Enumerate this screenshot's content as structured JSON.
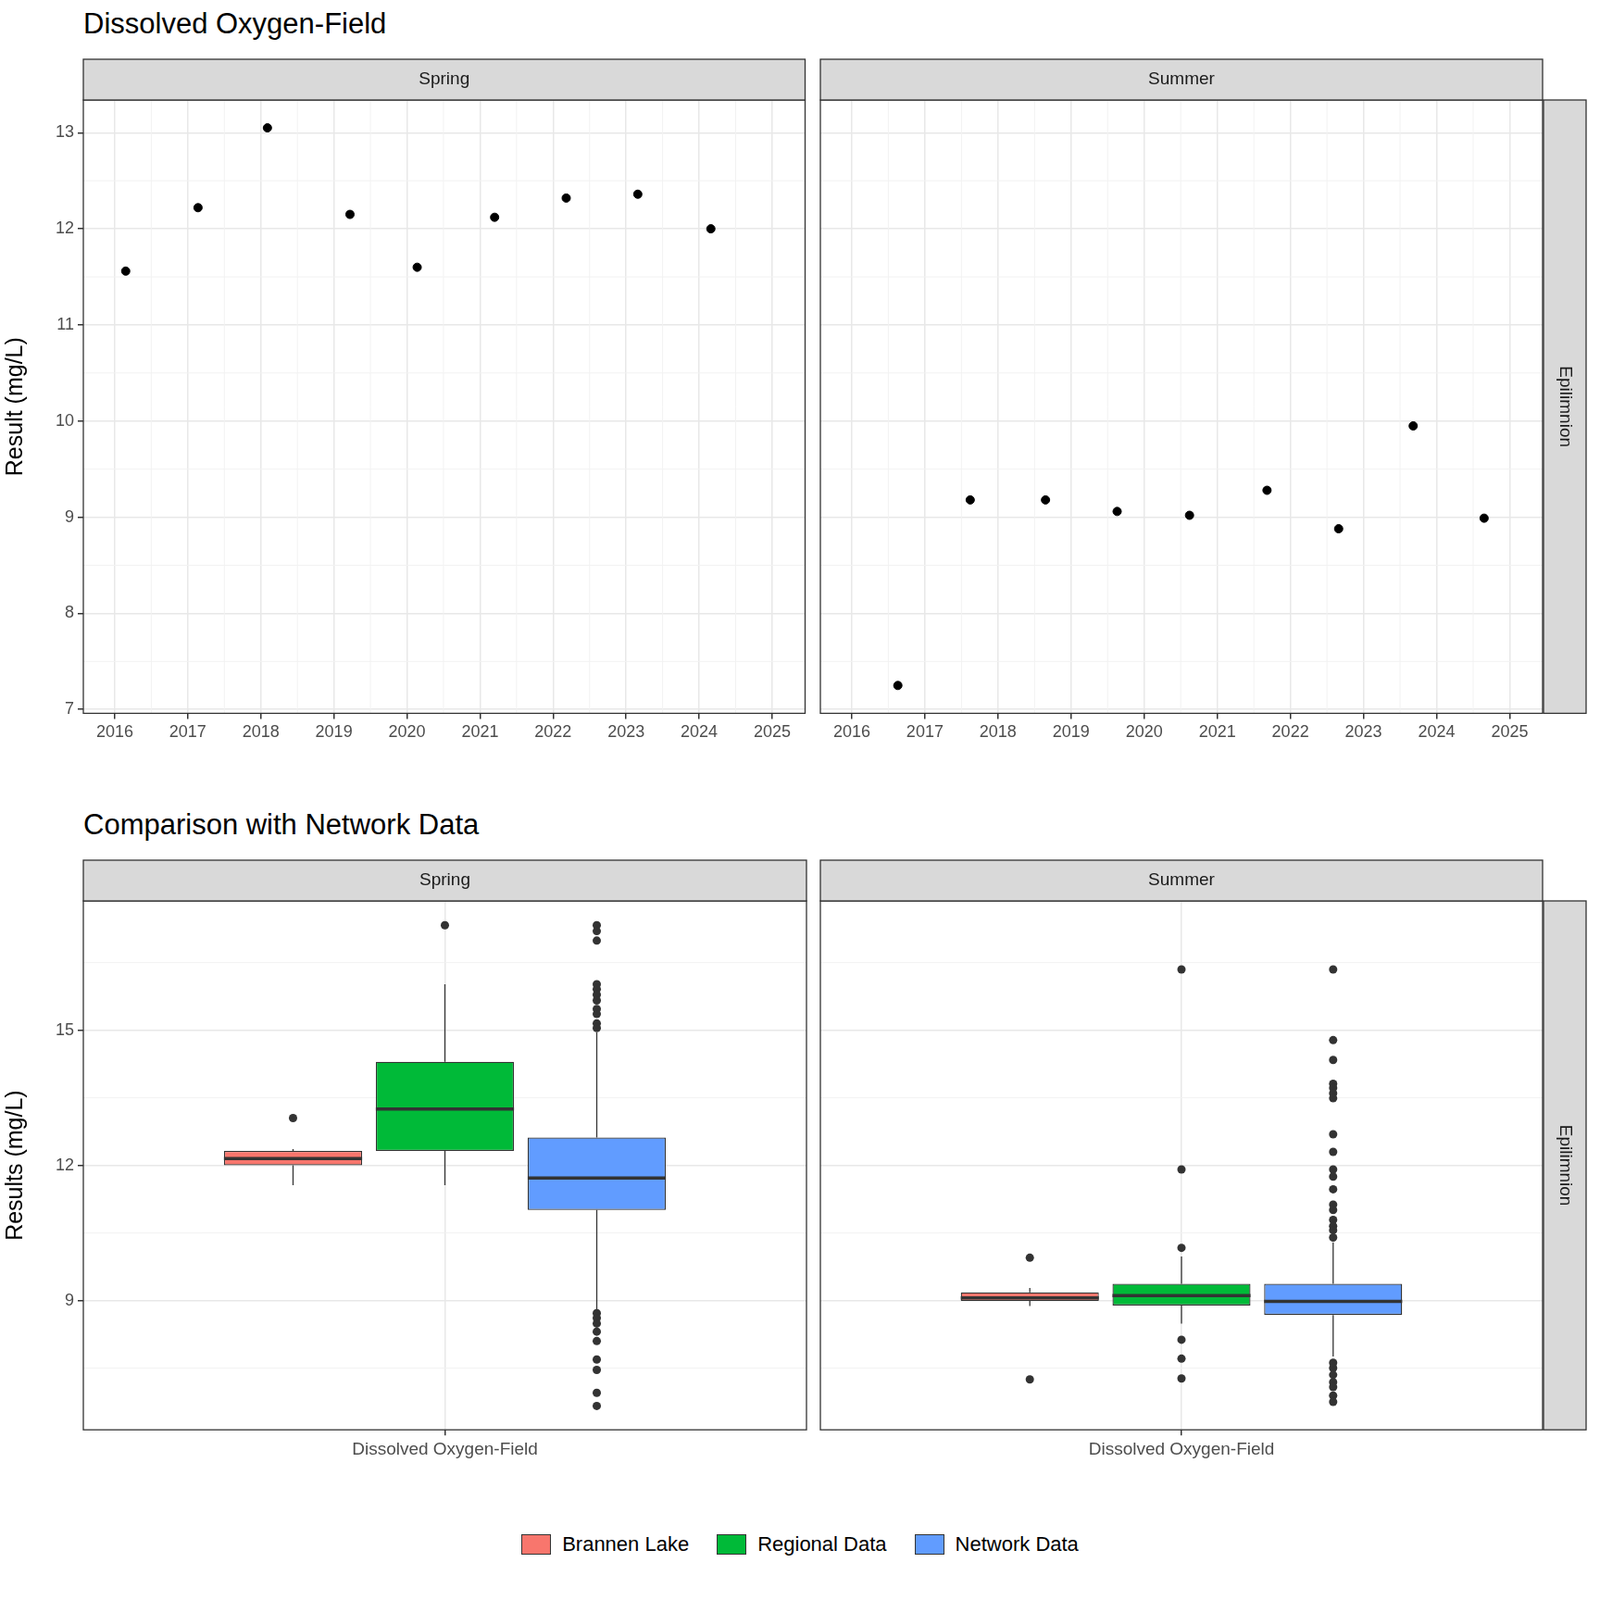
{
  "chart_data": [
    {
      "type": "scatter",
      "title": "Dissolved Oxygen-Field",
      "panel": "Spring",
      "y_label": "Result (mg/L)",
      "x": [
        2016.15,
        2017.14,
        2018.09,
        2019.22,
        2020.14,
        2021.2,
        2022.18,
        2023.16,
        2024.16
      ],
      "values": [
        11.56,
        12.22,
        13.05,
        12.15,
        11.6,
        12.12,
        12.32,
        12.36,
        12.0
      ],
      "color": "#000000",
      "marker": "circle",
      "xlim": [
        2015.57,
        2025.45
      ],
      "xticks": [
        2016,
        2017,
        2018,
        2019,
        2020,
        2021,
        2022,
        2023,
        2024,
        2025
      ],
      "ylim": [
        6.96,
        13.34
      ],
      "yticks": [
        7,
        8,
        9,
        10,
        11,
        12,
        13
      ],
      "grid": true,
      "tick_labels": true
    },
    {
      "type": "scatter",
      "panel": "Summer",
      "row_label": "Epilimnion",
      "x": [
        2016.63,
        2017.62,
        2018.65,
        2019.63,
        2020.62,
        2021.68,
        2022.66,
        2023.68,
        2024.65
      ],
      "values": [
        7.25,
        9.18,
        9.18,
        9.06,
        9.02,
        9.28,
        8.88,
        9.95,
        8.99
      ],
      "color": "#000000",
      "marker": "circle",
      "xlim": [
        2015.57,
        2025.45
      ],
      "xticks": [
        2016,
        2017,
        2018,
        2019,
        2020,
        2021,
        2022,
        2023,
        2024,
        2025
      ],
      "ylim": [
        6.96,
        13.34
      ],
      "yticks": [
        7,
        8,
        9,
        10,
        11,
        12,
        13
      ],
      "grid": true,
      "tick_labels": "x"
    },
    {
      "type": "boxplot",
      "title": "Comparison with Network Data",
      "panel": "Spring",
      "y_label": "Results (mg/L)",
      "categories": [
        "Dissolved Oxygen-Field"
      ],
      "series": [
        {
          "name": "Brannen Lake",
          "color": "#F8766D",
          "q1": 12.0,
          "median": 12.15,
          "q3": 12.32,
          "whisker_low": 11.56,
          "whisker_high": 12.36,
          "outliers": [
            13.05
          ]
        },
        {
          "name": "Regional Data",
          "color": "#00BA38",
          "q1": 12.32,
          "median": 13.25,
          "q3": 14.3,
          "whisker_low": 11.56,
          "whisker_high": 16.02,
          "outliers": [
            17.33
          ]
        },
        {
          "name": "Network Data",
          "color": "#619CFF",
          "q1": 11.01,
          "median": 11.72,
          "q3": 12.62,
          "whisker_low": 8.8,
          "whisker_high": 14.95,
          "outliers": [
            17.33,
            17.2,
            16.99,
            16.02,
            15.91,
            15.79,
            15.66,
            15.47,
            15.36,
            15.15,
            15.05,
            8.72,
            8.61,
            8.49,
            8.31,
            8.1,
            7.69,
            7.46,
            6.95,
            6.66
          ]
        }
      ],
      "ylim": [
        6.13,
        17.87
      ],
      "yticks": [
        9,
        12,
        15
      ],
      "grid": true,
      "legend": "bottom",
      "tick_labels": true
    },
    {
      "type": "boxplot",
      "panel": "Summer",
      "row_label": "Epilimnion",
      "categories": [
        "Dissolved Oxygen-Field"
      ],
      "series": [
        {
          "name": "Brannen Lake",
          "color": "#F8766D",
          "q1": 8.99,
          "median": 9.06,
          "q3": 9.18,
          "whisker_low": 8.88,
          "whisker_high": 9.28,
          "outliers": [
            7.25,
            9.95
          ]
        },
        {
          "name": "Regional Data",
          "color": "#00BA38",
          "q1": 8.89,
          "median": 9.11,
          "q3": 9.37,
          "whisker_low": 8.49,
          "whisker_high": 9.98,
          "outliers": [
            16.35,
            11.91,
            10.17,
            8.13,
            7.71,
            7.27
          ]
        },
        {
          "name": "Network Data",
          "color": "#619CFF",
          "q1": 8.68,
          "median": 8.98,
          "q3": 9.37,
          "whisker_low": 7.76,
          "whisker_high": 10.29,
          "outliers": [
            16.35,
            14.78,
            14.34,
            13.81,
            13.72,
            13.6,
            13.49,
            12.69,
            12.3,
            11.91,
            11.75,
            11.47,
            11.13,
            11.01,
            10.79,
            10.65,
            10.56,
            10.4,
            7.62,
            7.5,
            7.35,
            7.19,
            7.08,
            6.89,
            6.75
          ]
        }
      ],
      "ylim": [
        6.13,
        17.87
      ],
      "yticks": [
        9,
        12,
        15
      ],
      "grid": true,
      "legend": "bottom",
      "tick_labels": "x"
    }
  ]
}
